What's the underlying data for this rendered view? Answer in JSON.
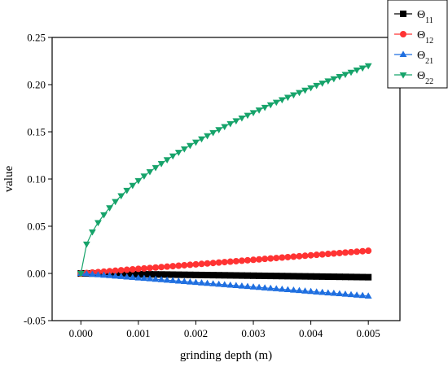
{
  "chart_data": {
    "type": "line",
    "title": "",
    "xlabel": "grinding depth (m)",
    "ylabel": "value",
    "xlim": [
      -0.0005,
      0.00555
    ],
    "ylim": [
      -0.05,
      0.25
    ],
    "xticks": [
      0.0,
      0.001,
      0.002,
      0.003,
      0.004,
      0.005
    ],
    "xtick_labels": [
      "0.000",
      "0.001",
      "0.002",
      "0.003",
      "0.004",
      "0.005"
    ],
    "yticks": [
      -0.05,
      0.0,
      0.05,
      0.1,
      0.15,
      0.2,
      0.25
    ],
    "ytick_labels": [
      "-0.05",
      "0.00",
      "0.05",
      "0.10",
      "0.15",
      "0.20",
      "0.25"
    ],
    "grid": false,
    "legend_position": "top-right",
    "x": [
      0.0,
      0.0001,
      0.0002,
      0.0003,
      0.0004,
      0.0005,
      0.0006,
      0.0007,
      0.0008,
      0.0009,
      0.001,
      0.0011,
      0.0012,
      0.0013,
      0.0014,
      0.0015,
      0.0016,
      0.0017,
      0.0018,
      0.0019,
      0.002,
      0.0021,
      0.0022,
      0.0023,
      0.0024,
      0.0025,
      0.0026,
      0.0027,
      0.0028,
      0.0029,
      0.003,
      0.0031,
      0.0032,
      0.0033,
      0.0034,
      0.0035,
      0.0036,
      0.0037,
      0.0038,
      0.0039,
      0.004,
      0.0041,
      0.0042,
      0.0043,
      0.0044,
      0.0045,
      0.0046,
      0.0047,
      0.0048,
      0.0049,
      0.005
    ],
    "series": [
      {
        "name": "Θ11",
        "base": "Θ",
        "sub": "11",
        "color": "#000000",
        "marker": "square",
        "values": [
          0.0,
          -8e-05,
          -0.00016,
          -0.00024,
          -0.00032,
          -0.0004,
          -0.00048,
          -0.00056,
          -0.00064,
          -0.00072,
          -0.0008,
          -0.00088,
          -0.00096,
          -0.00104,
          -0.00112,
          -0.0012,
          -0.00128,
          -0.00136,
          -0.00144,
          -0.00152,
          -0.0016,
          -0.00168,
          -0.00176,
          -0.00184,
          -0.00192,
          -0.002,
          -0.00208,
          -0.00216,
          -0.00224,
          -0.00232,
          -0.0024,
          -0.00248,
          -0.00256,
          -0.00264,
          -0.00272,
          -0.0028,
          -0.00288,
          -0.00296,
          -0.00304,
          -0.00312,
          -0.0032,
          -0.00328,
          -0.00336,
          -0.00344,
          -0.00352,
          -0.0036,
          -0.00368,
          -0.00376,
          -0.00384,
          -0.00392,
          -0.004
        ]
      },
      {
        "name": "Θ12",
        "base": "Θ",
        "sub": "12",
        "color": "#ff3333",
        "marker": "circle",
        "values": [
          0.0,
          0.00048,
          0.00096,
          0.00144,
          0.00192,
          0.0024,
          0.00288,
          0.00336,
          0.00384,
          0.00432,
          0.0048,
          0.00528,
          0.00576,
          0.00624,
          0.00672,
          0.0072,
          0.00768,
          0.00816,
          0.00864,
          0.00912,
          0.0096,
          0.01008,
          0.01056,
          0.01104,
          0.01152,
          0.012,
          0.01248,
          0.01296,
          0.01344,
          0.01392,
          0.0144,
          0.01488,
          0.01536,
          0.01584,
          0.01632,
          0.0168,
          0.01728,
          0.01776,
          0.01824,
          0.01872,
          0.0192,
          0.01968,
          0.02016,
          0.02064,
          0.02112,
          0.0216,
          0.02208,
          0.02256,
          0.02304,
          0.02352,
          0.024
        ]
      },
      {
        "name": "Θ21",
        "base": "Θ",
        "sub": "21",
        "color": "#1f6fe0",
        "marker": "triangle-up",
        "values": [
          0.0,
          -0.00048,
          -0.00096,
          -0.00144,
          -0.00192,
          -0.0024,
          -0.00288,
          -0.00336,
          -0.00384,
          -0.00432,
          -0.0048,
          -0.00528,
          -0.00576,
          -0.00624,
          -0.00672,
          -0.0072,
          -0.00768,
          -0.00816,
          -0.00864,
          -0.00912,
          -0.0096,
          -0.01008,
          -0.01056,
          -0.01104,
          -0.01152,
          -0.012,
          -0.01248,
          -0.01296,
          -0.01344,
          -0.01392,
          -0.0144,
          -0.01488,
          -0.01536,
          -0.01584,
          -0.01632,
          -0.0168,
          -0.01728,
          -0.01776,
          -0.01824,
          -0.01872,
          -0.0192,
          -0.01968,
          -0.02016,
          -0.02064,
          -0.02112,
          -0.0216,
          -0.02208,
          -0.02256,
          -0.02304,
          -0.02352,
          -0.024
        ]
      },
      {
        "name": "Θ22",
        "base": "Θ",
        "sub": "22",
        "color": "#16a36a",
        "marker": "triangle-down",
        "values": [
          0.0,
          0.0311,
          0.044,
          0.0539,
          0.0622,
          0.0696,
          0.0762,
          0.0823,
          0.088,
          0.0933,
          0.0984,
          0.1032,
          0.1078,
          0.1122,
          0.1164,
          0.1205,
          0.1245,
          0.1283,
          0.132,
          0.1356,
          0.1391,
          0.1426,
          0.1459,
          0.1492,
          0.1524,
          0.1556,
          0.1587,
          0.1617,
          0.1647,
          0.1676,
          0.1704,
          0.1732,
          0.176,
          0.1787,
          0.1814,
          0.184,
          0.1866,
          0.1892,
          0.1917,
          0.1942,
          0.1967,
          0.1992,
          0.2016,
          0.204,
          0.2063,
          0.2086,
          0.2109,
          0.2132,
          0.2155,
          0.2177,
          0.22
        ]
      }
    ]
  }
}
